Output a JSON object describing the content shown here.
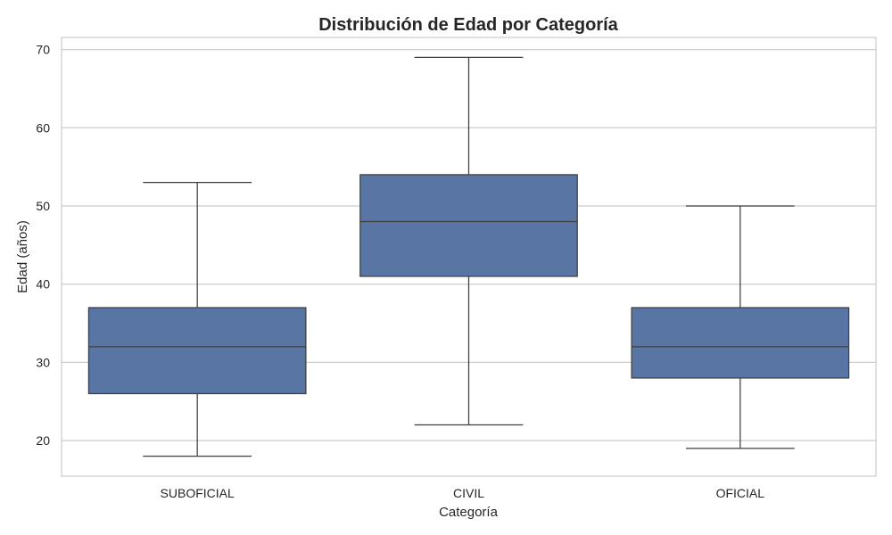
{
  "chart_data": {
    "type": "box",
    "title": "Distribución de Edad por Categoría",
    "xlabel": "Categoría",
    "ylabel": "Edad (años)",
    "categories": [
      "SUBOFICIAL",
      "CIVIL",
      "OFICIAL"
    ],
    "boxes": [
      {
        "category": "SUBOFICIAL",
        "min": 18,
        "q1": 26,
        "median": 32,
        "q3": 37,
        "max": 53
      },
      {
        "category": "CIVIL",
        "min": 22,
        "q1": 41,
        "median": 48,
        "q3": 54,
        "max": 69
      },
      {
        "category": "OFICIAL",
        "min": 19,
        "q1": 28,
        "median": 32,
        "q3": 37,
        "max": 50
      }
    ],
    "ylim": [
      15.45,
      71.55
    ],
    "yticks": [
      20,
      30,
      40,
      50,
      60,
      70
    ],
    "grid": true,
    "box_color": "#5875a4",
    "line_color": "#3f3f3f",
    "grid_color": "#cccccc"
  }
}
